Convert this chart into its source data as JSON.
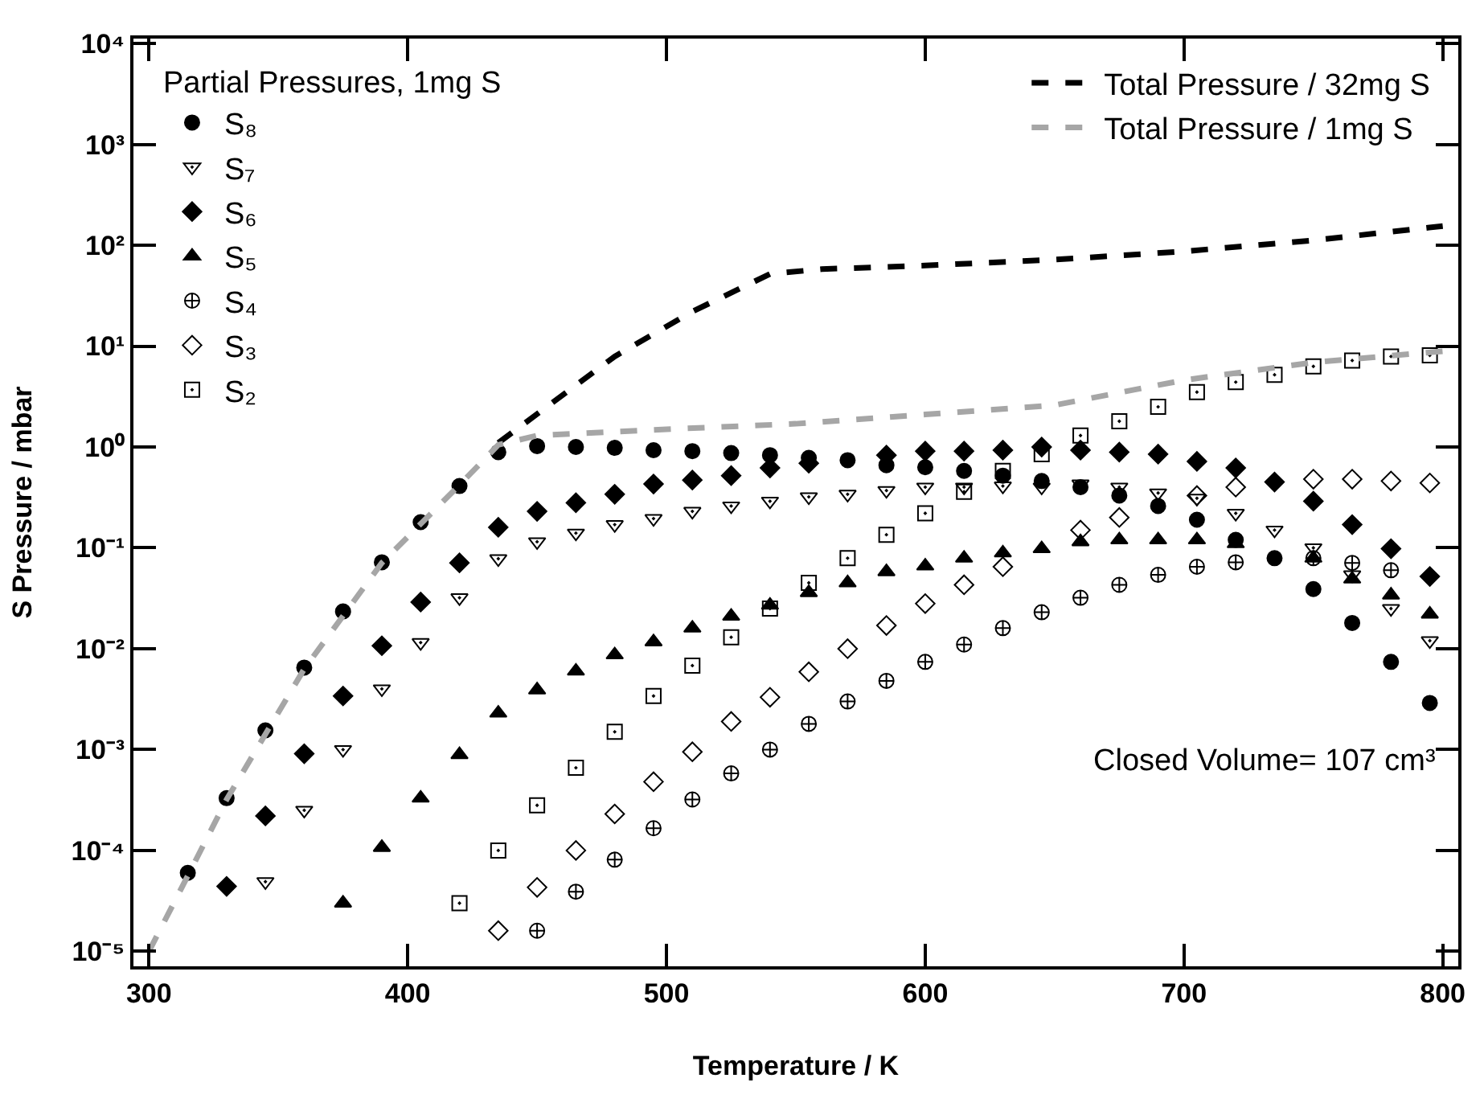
{
  "chart_data": {
    "type": "scatter",
    "xlabel": "Temperature / K",
    "ylabel": "S Pressure / mbar",
    "legend_title": "Partial Pressures, 1mg S",
    "log": "y",
    "legend": "top left",
    "xlim": [
      294,
      806
    ],
    "xticks": [
      300,
      400,
      500,
      600,
      700,
      800
    ],
    "ylim": [
      7.1e-06,
      11200
    ],
    "yticks": [
      {
        "value": 1e-05,
        "label": "10⁻⁵"
      },
      {
        "value": 0.0001,
        "label": "10⁻⁴"
      },
      {
        "value": 0.001,
        "label": "10⁻³"
      },
      {
        "value": 0.01,
        "label": "10⁻²"
      },
      {
        "value": 0.1,
        "label": "10⁻¹"
      },
      {
        "value": 1,
        "label": "10⁰"
      },
      {
        "value": 10,
        "label": "10¹"
      },
      {
        "value": 100,
        "label": "10²"
      },
      {
        "value": 1000,
        "label": "10³"
      },
      {
        "value": 10000,
        "label": "10⁴"
      }
    ],
    "annotations": [
      "Closed Volume= 107 cm³"
    ],
    "series": [
      {
        "name": "S₈",
        "marker": "circle",
        "color": "#000000",
        "x": [
          315,
          330,
          345,
          360,
          375,
          390,
          405,
          420,
          435,
          450,
          465,
          480,
          495,
          510,
          525,
          540,
          555,
          570,
          585,
          600,
          615,
          630,
          645,
          660,
          675,
          690,
          705,
          720,
          735,
          750,
          765,
          780,
          795
        ],
        "values": [
          6e-05,
          0.00033,
          0.00155,
          0.0065,
          0.0234,
          0.072,
          0.18,
          0.41,
          0.89,
          1.02,
          1.0,
          0.98,
          0.93,
          0.91,
          0.87,
          0.83,
          0.78,
          0.74,
          0.66,
          0.63,
          0.58,
          0.52,
          0.46,
          0.4,
          0.33,
          0.26,
          0.19,
          0.12,
          0.079,
          0.039,
          0.018,
          0.0074,
          0.0029
        ]
      },
      {
        "name": "S₇",
        "marker": "triangle-down-open-dot",
        "color": "#000000",
        "x": [
          345,
          360,
          375,
          390,
          405,
          420,
          435,
          450,
          465,
          480,
          495,
          510,
          525,
          540,
          555,
          570,
          585,
          600,
          615,
          630,
          645,
          660,
          675,
          690,
          705,
          720,
          735,
          750,
          765,
          780,
          795
        ],
        "values": [
          4.9e-05,
          0.00025,
          0.001,
          0.004,
          0.0115,
          0.032,
          0.078,
          0.115,
          0.14,
          0.17,
          0.195,
          0.23,
          0.26,
          0.29,
          0.32,
          0.34,
          0.37,
          0.4,
          0.4,
          0.41,
          0.4,
          0.43,
          0.4,
          0.35,
          0.31,
          0.22,
          0.15,
          0.1,
          0.054,
          0.025,
          0.012
        ]
      },
      {
        "name": "S₆",
        "marker": "diamond",
        "color": "#000000",
        "x": [
          330,
          345,
          360,
          375,
          390,
          405,
          420,
          435,
          450,
          465,
          480,
          495,
          510,
          525,
          540,
          555,
          570,
          585,
          600,
          615,
          630,
          645,
          660,
          675,
          690,
          705,
          720,
          735,
          750,
          765,
          780,
          795
        ],
        "values": [
          4.4e-05,
          0.00022,
          0.00091,
          0.0034,
          0.0107,
          0.029,
          0.071,
          0.16,
          0.23,
          0.28,
          0.34,
          0.43,
          0.47,
          0.52,
          0.62,
          0.69,
          null,
          0.83,
          0.91,
          0.91,
          0.93,
          1.0,
          0.93,
          0.89,
          0.85,
          0.72,
          0.62,
          0.45,
          0.29,
          0.17,
          0.098,
          0.052
        ]
      },
      {
        "name": "S₅",
        "marker": "triangle",
        "color": "#000000",
        "x": [
          375,
          390,
          405,
          420,
          435,
          450,
          465,
          480,
          495,
          510,
          525,
          540,
          555,
          570,
          585,
          600,
          615,
          630,
          645,
          660,
          675,
          690,
          705,
          720,
          735,
          750,
          765,
          780,
          795
        ],
        "values": [
          3e-05,
          0.000107,
          0.00033,
          0.00089,
          0.0023,
          0.0039,
          0.006,
          0.0087,
          0.0117,
          0.016,
          0.021,
          0.027,
          0.036,
          0.045,
          0.058,
          0.066,
          0.079,
          0.089,
          0.098,
          0.115,
          0.12,
          0.12,
          0.12,
          0.11,
          null,
          0.079,
          0.049,
          0.034,
          0.022
        ]
      },
      {
        "name": "S₄",
        "marker": "cross",
        "color": "#000000",
        "x": [
          450,
          465,
          480,
          495,
          510,
          525,
          540,
          555,
          570,
          585,
          600,
          615,
          630,
          645,
          660,
          675,
          690,
          705,
          720,
          735,
          750,
          765,
          780
        ],
        "values": [
          1.6e-05,
          3.9e-05,
          8.1e-05,
          0.000166,
          0.00032,
          0.00058,
          0.001,
          0.0018,
          0.003,
          0.0048,
          0.0074,
          0.011,
          0.016,
          0.023,
          0.032,
          0.043,
          0.054,
          0.065,
          0.072,
          null,
          0.079,
          0.071,
          0.06
        ]
      },
      {
        "name": "S₃",
        "marker": "diamond-open",
        "color": "#000000",
        "x": [
          435,
          450,
          465,
          480,
          495,
          510,
          525,
          540,
          555,
          570,
          585,
          600,
          615,
          630,
          645,
          660,
          675,
          690,
          705,
          720,
          735,
          750,
          765,
          780,
          795
        ],
        "values": [
          1.6e-05,
          4.3e-05,
          0.0001,
          0.00023,
          0.00048,
          0.00095,
          0.0019,
          0.0033,
          0.0059,
          0.01,
          0.017,
          0.028,
          0.043,
          0.065,
          null,
          0.15,
          0.2,
          null,
          0.33,
          0.4,
          null,
          0.48,
          0.48,
          0.46,
          0.44
        ]
      },
      {
        "name": "S₂",
        "marker": "square-open-dot",
        "color": "#000000",
        "x": [
          420,
          435,
          450,
          465,
          480,
          495,
          510,
          525,
          540,
          555,
          570,
          585,
          600,
          615,
          630,
          645,
          660,
          675,
          690,
          705,
          720,
          735,
          750,
          765,
          780,
          795
        ],
        "values": [
          3e-05,
          0.0001,
          0.00028,
          0.00066,
          0.0015,
          0.0034,
          0.0068,
          0.013,
          0.025,
          0.045,
          0.079,
          0.135,
          0.22,
          0.36,
          0.58,
          0.85,
          1.3,
          1.8,
          2.5,
          3.5,
          4.4,
          5.2,
          6.3,
          7.2,
          7.9,
          8.1
        ]
      },
      {
        "name": "Total Pressure / 32mg S",
        "type": "line",
        "line_style": "dashed",
        "color": "#000000",
        "x": [
          435,
          480,
          510,
          540,
          560,
          600,
          650,
          700,
          750,
          800
        ],
        "values": [
          1.1,
          7.9,
          22,
          52,
          58,
          63,
          72,
          87,
          112,
          155
        ]
      },
      {
        "name": "Total Pressure / 1mg S",
        "type": "line",
        "line_style": "dashed",
        "color": "#a6a6a6",
        "x": [
          300,
          315,
          330,
          360,
          390,
          420,
          435,
          450,
          500,
          550,
          600,
          650,
          700,
          750,
          800
        ],
        "values": [
          1e-05,
          5.6e-05,
          0.00032,
          0.0063,
          0.071,
          0.42,
          1.05,
          1.3,
          1.5,
          1.7,
          2.1,
          2.6,
          4.6,
          6.9,
          8.9
        ]
      }
    ]
  }
}
